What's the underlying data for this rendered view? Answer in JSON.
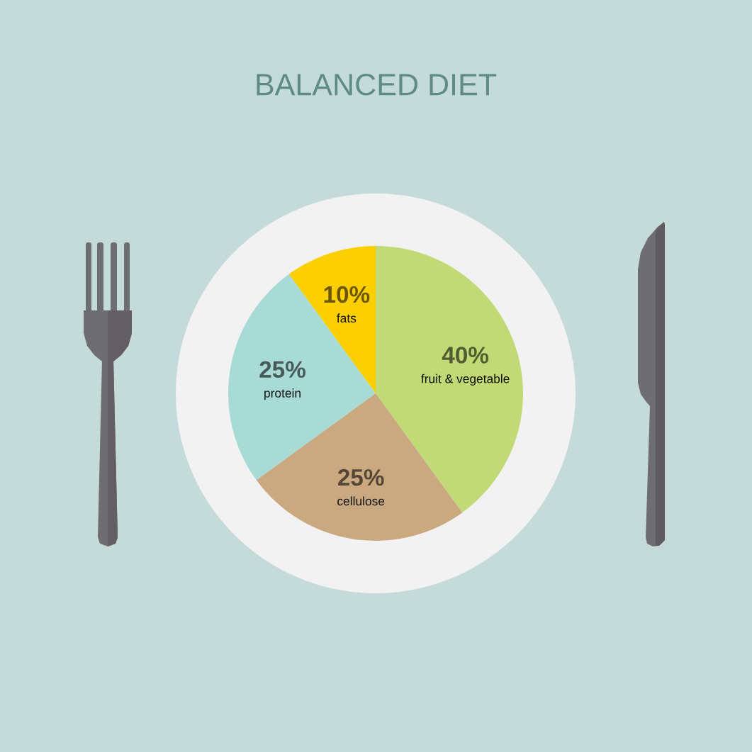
{
  "chart_data": {
    "type": "pie",
    "title": "BALANCED DIET",
    "categories": [
      "fruit & vegetable",
      "cellulose",
      "protein",
      "fats"
    ],
    "values": [
      40,
      25,
      25,
      10
    ],
    "colors": [
      "#c1da75",
      "#cba980",
      "#a8dbd6",
      "#fccf00"
    ],
    "value_labels": [
      "40%",
      "25%",
      "25%",
      "10%"
    ]
  }
}
